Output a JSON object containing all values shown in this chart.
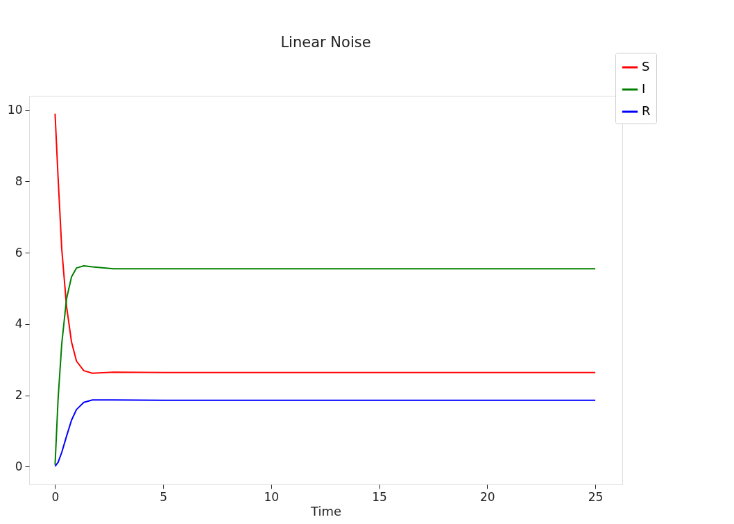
{
  "chart_data": {
    "type": "line",
    "title": "Linear Noise",
    "xlabel": "Time",
    "xlim": [
      -1.2,
      26.25
    ],
    "ylim": [
      -0.5,
      10.4
    ],
    "xticks": [
      0,
      5,
      10,
      15,
      20,
      25
    ],
    "yticks": [
      0,
      2,
      4,
      6,
      8,
      10
    ],
    "grid": false,
    "legend": "top right",
    "line_style": "solid",
    "marker": "none",
    "x": [
      0,
      0.14,
      0.31,
      0.53,
      0.76,
      0.99,
      1.33,
      1.73,
      2.7,
      5,
      10,
      15,
      20,
      25
    ],
    "series": [
      {
        "name": "S",
        "color": "#ff0000",
        "values": [
          9.9,
          8.1,
          6.1,
          4.5,
          3.5,
          2.96,
          2.69,
          2.62,
          2.65,
          2.64,
          2.64,
          2.64,
          2.64,
          2.64
        ]
      },
      {
        "name": "I",
        "color": "#008000",
        "values": [
          0.05,
          1.9,
          3.45,
          4.7,
          5.32,
          5.57,
          5.63,
          5.6,
          5.55,
          5.55,
          5.55,
          5.55,
          5.55,
          5.55
        ]
      },
      {
        "name": "R",
        "color": "#0000ff",
        "values": [
          0.01,
          0.12,
          0.4,
          0.85,
          1.3,
          1.6,
          1.8,
          1.87,
          1.87,
          1.86,
          1.86,
          1.86,
          1.86,
          1.86
        ]
      }
    ]
  }
}
